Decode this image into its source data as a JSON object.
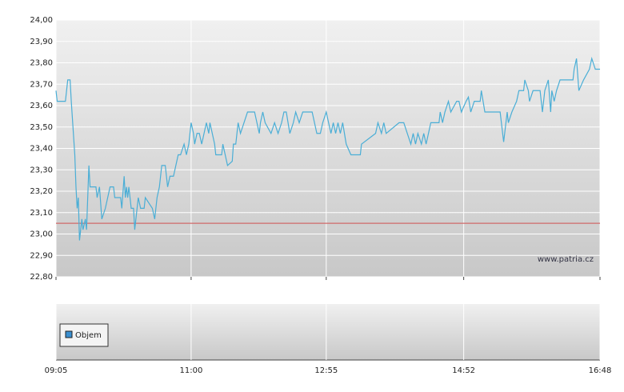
{
  "chart_data": {
    "type": "line",
    "x": [
      545,
      546,
      553,
      554,
      555,
      557,
      558,
      561,
      562,
      563,
      564,
      565,
      567,
      568,
      570,
      571,
      572,
      573,
      574,
      579,
      580,
      582,
      584,
      587,
      591,
      594,
      595,
      600,
      601,
      603,
      604,
      605,
      606,
      607,
      609,
      611,
      612,
      615,
      617,
      620,
      621,
      627,
      629,
      631,
      633,
      635,
      638,
      640,
      642,
      645,
      649,
      651,
      654,
      656,
      658,
      660,
      662,
      663,
      665,
      667,
      669,
      671,
      673,
      675,
      676,
      678,
      680,
      681,
      686,
      687,
      689,
      691,
      695,
      696,
      698,
      700,
      702,
      705,
      708,
      714,
      716,
      718,
      719,
      721,
      723,
      728,
      731,
      734,
      737,
      739,
      741,
      744,
      747,
      749,
      752,
      755,
      763,
      767,
      770,
      772,
      775,
      777,
      779,
      781,
      783,
      785,
      787,
      789,
      792,
      796,
      797,
      804,
      805,
      817,
      819,
      822,
      824,
      826,
      837,
      841,
      844,
      847,
      849,
      851,
      853,
      856,
      858,
      860,
      864,
      871,
      872,
      874,
      876,
      879,
      881,
      886,
      888,
      890,
      894,
      896,
      898,
      901,
      906,
      907,
      910,
      923,
      926,
      929,
      930,
      933,
      937,
      939,
      943,
      944,
      947,
      948,
      951,
      957,
      959,
      961,
      964,
      966,
      967,
      969,
      971,
      974,
      979,
      985,
      986,
      988,
      990,
      994,
      999,
      1001,
      1004,
      1008
    ],
    "series": [
      {
        "color": "#4aaed6",
        "values": [
          23.67,
          23.62,
          23.62,
          23.67,
          23.72,
          23.72,
          23.62,
          23.37,
          23.22,
          23.12,
          23.17,
          22.97,
          23.07,
          23.02,
          23.07,
          23.02,
          23.17,
          23.32,
          23.22,
          23.22,
          23.17,
          23.22,
          23.07,
          23.12,
          23.22,
          23.22,
          23.17,
          23.17,
          23.12,
          23.27,
          23.17,
          23.22,
          23.17,
          23.22,
          23.12,
          23.12,
          23.02,
          23.17,
          23.12,
          23.12,
          23.17,
          23.12,
          23.07,
          23.17,
          23.22,
          23.32,
          23.32,
          23.22,
          23.27,
          23.27,
          23.37,
          23.37,
          23.42,
          23.37,
          23.42,
          23.52,
          23.47,
          23.42,
          23.47,
          23.47,
          23.42,
          23.47,
          23.52,
          23.47,
          23.52,
          23.47,
          23.42,
          23.37,
          23.37,
          23.42,
          23.37,
          23.32,
          23.34,
          23.42,
          23.42,
          23.52,
          23.47,
          23.52,
          23.57,
          23.57,
          23.52,
          23.47,
          23.52,
          23.57,
          23.52,
          23.47,
          23.52,
          23.47,
          23.52,
          23.57,
          23.57,
          23.47,
          23.52,
          23.57,
          23.52,
          23.57,
          23.57,
          23.47,
          23.47,
          23.52,
          23.57,
          23.52,
          23.47,
          23.52,
          23.47,
          23.52,
          23.47,
          23.52,
          23.42,
          23.37,
          23.37,
          23.37,
          23.42,
          23.47,
          23.52,
          23.47,
          23.52,
          23.47,
          23.52,
          23.52,
          23.47,
          23.42,
          23.47,
          23.42,
          23.47,
          23.42,
          23.47,
          23.42,
          23.52,
          23.52,
          23.57,
          23.52,
          23.57,
          23.62,
          23.57,
          23.62,
          23.62,
          23.57,
          23.62,
          23.64,
          23.57,
          23.62,
          23.62,
          23.67,
          23.57,
          23.57,
          23.43,
          23.57,
          23.52,
          23.57,
          23.62,
          23.67,
          23.67,
          23.72,
          23.67,
          23.62,
          23.67,
          23.67,
          23.57,
          23.67,
          23.72,
          23.57,
          23.67,
          23.62,
          23.67,
          23.72,
          23.72,
          23.72,
          23.77,
          23.82,
          23.67,
          23.72,
          23.77,
          23.82,
          23.77,
          23.77
        ]
      }
    ],
    "reference_line": 23.05,
    "reference_color": "#d06a6a",
    "xlim": [
      545,
      1008
    ],
    "xticks": [
      {
        "value": 545,
        "label": "09:05"
      },
      {
        "value": 660,
        "label": "11:00"
      },
      {
        "value": 775,
        "label": "12:55"
      },
      {
        "value": 892,
        "label": "14:52"
      },
      {
        "value": 1008,
        "label": "16:48"
      }
    ],
    "ylim": [
      22.8,
      24
    ],
    "yticks": [
      {
        "value": 22.8,
        "label": "22,80"
      },
      {
        "value": 22.9,
        "label": "22,90"
      },
      {
        "value": 23,
        "label": "23,00"
      },
      {
        "value": 23.1,
        "label": "23,10"
      },
      {
        "value": 23.2,
        "label": "23,20"
      },
      {
        "value": 23.3,
        "label": "23,30"
      },
      {
        "value": 23.4,
        "label": "23,40"
      },
      {
        "value": 23.5,
        "label": "23,50"
      },
      {
        "value": 23.6,
        "label": "23,60"
      },
      {
        "value": 23.7,
        "label": "23,70"
      },
      {
        "value": 23.8,
        "label": "23,80"
      },
      {
        "value": 23.9,
        "label": "23,90"
      },
      {
        "value": 24,
        "label": "24,00"
      }
    ],
    "grid": true,
    "watermark": "www.patria.cz",
    "volume": {
      "name": "Objem",
      "color": "#3a8fd0"
    }
  }
}
